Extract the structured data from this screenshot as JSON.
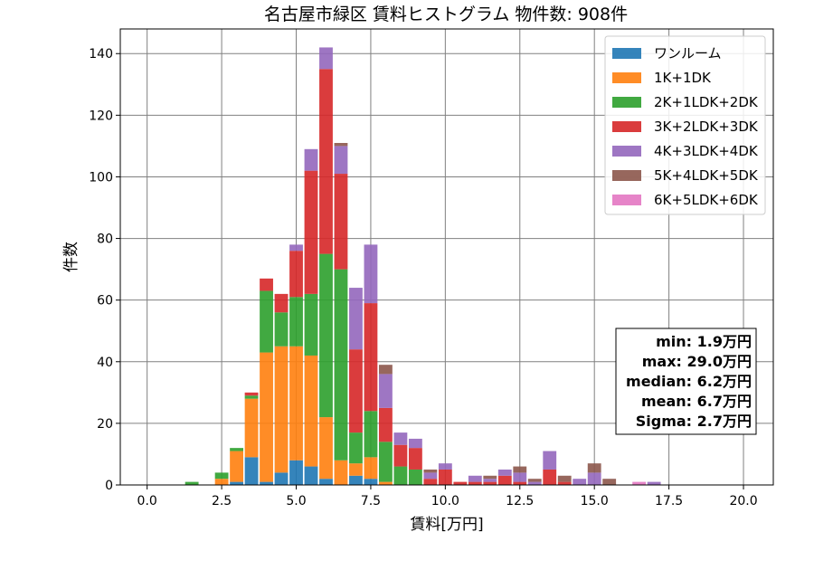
{
  "chart_data": {
    "type": "bar",
    "stacked": true,
    "title": "名古屋市緑区 賃料ヒストグラム 物件数: 908件",
    "xlabel": "賃料[万円]",
    "ylabel": "件数",
    "xlim": [
      -0.9,
      21.0
    ],
    "ylim": [
      0,
      148
    ],
    "xticks": [
      0.0,
      2.5,
      5.0,
      7.5,
      10.0,
      12.5,
      15.0,
      17.5,
      20.0
    ],
    "xtick_labels": [
      "0.0",
      "2.5",
      "5.0",
      "7.5",
      "10.0",
      "12.5",
      "15.0",
      "17.5",
      "20.0"
    ],
    "yticks": [
      0,
      20,
      40,
      60,
      80,
      100,
      120,
      140
    ],
    "ytick_labels": [
      "0",
      "20",
      "40",
      "60",
      "80",
      "100",
      "120",
      "140"
    ],
    "grid": true,
    "legend_position": "top-right",
    "bin_width": 0.5,
    "x": [
      1.5,
      2.5,
      3.0,
      3.5,
      4.0,
      4.5,
      5.0,
      5.5,
      6.0,
      6.5,
      7.0,
      7.5,
      8.0,
      8.5,
      9.0,
      9.5,
      10.0,
      10.5,
      11.0,
      11.5,
      12.0,
      12.5,
      13.0,
      13.5,
      14.0,
      14.5,
      15.0,
      15.5,
      16.5,
      17.0
    ],
    "series": [
      {
        "name": "ワンルーム",
        "color": "#1f77b4",
        "values": [
          0,
          0,
          1,
          9,
          1,
          4,
          8,
          6,
          2,
          0,
          3,
          2,
          0,
          0,
          0,
          0,
          0,
          0,
          0,
          0,
          0,
          0,
          0,
          0,
          0,
          0,
          0,
          0,
          0,
          0
        ]
      },
      {
        "name": "1K+1DK",
        "color": "#ff7f0e",
        "values": [
          0,
          2,
          10,
          19,
          42,
          41,
          37,
          36,
          20,
          8,
          4,
          7,
          1,
          0,
          0,
          0,
          0,
          0,
          0,
          0,
          0,
          0,
          0,
          0,
          0,
          0,
          0,
          0,
          0,
          0
        ]
      },
      {
        "name": "2K+1LDK+2DK",
        "color": "#2ca02c",
        "values": [
          1,
          2,
          1,
          1,
          20,
          11,
          16,
          20,
          53,
          62,
          10,
          15,
          13,
          6,
          5,
          0,
          0,
          0,
          0,
          0,
          0,
          0,
          0,
          0,
          0,
          0,
          0,
          0,
          0,
          0
        ]
      },
      {
        "name": "3K+2LDK+3DK",
        "color": "#d62728",
        "values": [
          0,
          0,
          0,
          1,
          4,
          6,
          15,
          40,
          60,
          31,
          27,
          35,
          11,
          7,
          7,
          2,
          5,
          1,
          1,
          1,
          3,
          1,
          0,
          5,
          1,
          0,
          0,
          0,
          0,
          0
        ]
      },
      {
        "name": "4K+3LDK+4DK",
        "color": "#9467bd",
        "values": [
          0,
          0,
          0,
          0,
          0,
          0,
          2,
          7,
          7,
          9,
          20,
          19,
          11,
          4,
          3,
          2,
          2,
          0,
          2,
          1,
          2,
          3,
          1,
          6,
          0,
          2,
          4,
          0,
          0,
          1
        ]
      },
      {
        "name": "5K+4LDK+5DK",
        "color": "#8c564b",
        "values": [
          0,
          0,
          0,
          0,
          0,
          0,
          0,
          0,
          0,
          1,
          0,
          0,
          3,
          0,
          0,
          1,
          0,
          0,
          0,
          1,
          0,
          2,
          1,
          0,
          2,
          0,
          3,
          2,
          0,
          0
        ]
      },
      {
        "name": "6K+5LDK+6DK",
        "color": "#e377c2",
        "values": [
          0,
          0,
          0,
          0,
          0,
          0,
          0,
          0,
          0,
          0,
          0,
          0,
          0,
          0,
          0,
          0,
          0,
          0,
          0,
          0,
          0,
          0,
          0,
          0,
          0,
          0,
          0,
          0,
          1,
          0
        ]
      }
    ],
    "annotation": {
      "lines": [
        "min: 1.9万円",
        "max: 29.0万円",
        "median: 6.2万円",
        "mean: 6.7万円",
        "Sigma: 2.7万円"
      ],
      "position": "right"
    }
  }
}
